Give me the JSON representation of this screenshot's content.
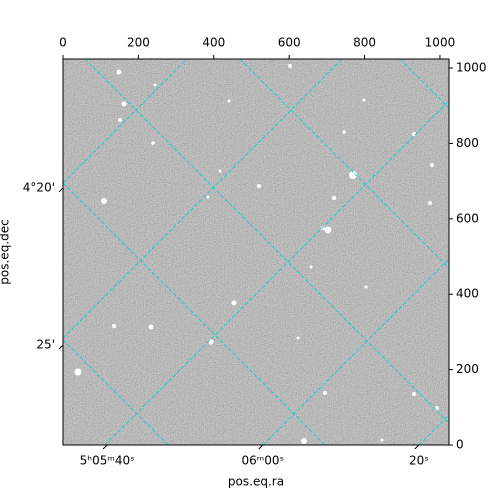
{
  "chart_data": {
    "type": "image",
    "xlabel": "pos.eq.ra",
    "ylabel": "pos.eq.dec",
    "xlim": [
      0,
      1024
    ],
    "ylim": [
      0,
      1024
    ],
    "xticks": [
      0,
      200,
      400,
      600,
      800,
      1000
    ],
    "yticks": [
      0,
      200,
      400,
      600,
      800,
      1000
    ],
    "ra_ticks": [
      {
        "value": 117,
        "label": "5ʰ05ᵐ40ˢ"
      },
      {
        "value": 530,
        "label": "06ᵐ00ˢ"
      },
      {
        "value": 944,
        "label": "20ˢ"
      }
    ],
    "dec_ticks": [
      {
        "value": 682,
        "label": "4°20'"
      },
      {
        "value": 265,
        "label": "25'"
      }
    ]
  }
}
